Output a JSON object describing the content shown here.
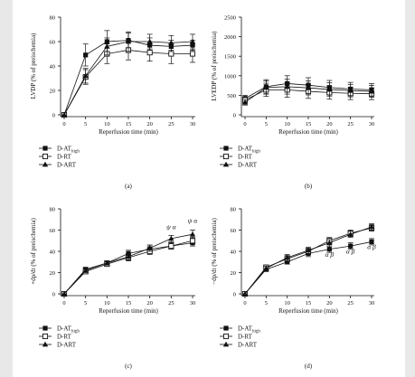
{
  "chart_data": [
    {
      "panel": "(a)",
      "type": "line",
      "x": [
        0,
        5,
        10,
        15,
        20,
        25,
        30
      ],
      "xlabel": "Reperfusion time (min)",
      "ylabel": "LVDP (% of preischemia)",
      "xticks": [
        "0",
        "5",
        "10",
        "15",
        "20",
        "25",
        "30"
      ],
      "yticks": [
        "0",
        "20",
        "40",
        "60",
        "80"
      ],
      "ylim": [
        0,
        80
      ],
      "series": [
        {
          "name": "D-AT",
          "name_sub": "high",
          "marker": "square-filled",
          "values": [
            0,
            49,
            60,
            61,
            57,
            56,
            57
          ],
          "errors": [
            0,
            9,
            9,
            6,
            6,
            5,
            4
          ]
        },
        {
          "name": "D-RT",
          "marker": "square-open",
          "values": [
            0,
            31,
            50,
            53,
            51,
            50,
            50
          ],
          "errors": [
            0,
            6,
            8,
            8,
            7,
            8,
            7
          ]
        },
        {
          "name": "D-ART",
          "marker": "triangle-filled",
          "values": [
            0,
            32,
            56,
            60,
            60,
            59,
            60
          ],
          "errors": [
            0,
            6,
            7,
            8,
            6,
            6,
            6
          ]
        }
      ],
      "annotations": []
    },
    {
      "panel": "(b)",
      "type": "line",
      "x": [
        0,
        5,
        10,
        15,
        20,
        25,
        30
      ],
      "xlabel": "Reperfusion time (min)",
      "ylabel": "LVEDP (% of preischemia)",
      "xticks": [
        "0",
        "5",
        "10",
        "15",
        "20",
        "25",
        "30"
      ],
      "yticks": [
        "0",
        "500",
        "1000",
        "1500",
        "2000",
        "2500"
      ],
      "ylim": [
        0,
        2500
      ],
      "series": [
        {
          "name": "D-AT",
          "name_sub": "high",
          "marker": "square-filled",
          "values": [
            420,
            720,
            800,
            760,
            700,
            660,
            640
          ],
          "errors": [
            80,
            180,
            200,
            190,
            180,
            170,
            160
          ]
        },
        {
          "name": "D-RT",
          "marker": "square-open",
          "values": [
            380,
            640,
            640,
            600,
            570,
            550,
            540
          ],
          "errors": [
            80,
            170,
            190,
            180,
            170,
            160,
            150
          ]
        },
        {
          "name": "D-ART",
          "marker": "triangle-filled",
          "values": [
            320,
            700,
            720,
            690,
            650,
            620,
            600
          ],
          "errors": [
            70,
            170,
            190,
            180,
            170,
            160,
            150
          ]
        }
      ],
      "annotations": []
    },
    {
      "panel": "(c)",
      "type": "line",
      "x": [
        0,
        5,
        10,
        15,
        20,
        25,
        30
      ],
      "xlabel": "Reperfusion time (min)",
      "ylabel": "+dp/dt (% of preischemia)",
      "xticks": [
        "0",
        "5",
        "10",
        "15",
        "20",
        "25",
        "30"
      ],
      "yticks": [
        "0",
        "20",
        "40",
        "60",
        "80"
      ],
      "ylim": [
        0,
        80
      ],
      "series": [
        {
          "name": "D-AT",
          "name_sub": "high",
          "marker": "square-filled",
          "values": [
            0,
            23,
            29,
            38,
            42,
            45,
            48
          ],
          "errors": [
            0,
            2,
            2,
            3,
            3,
            3,
            3
          ]
        },
        {
          "name": "D-RT",
          "marker": "square-open",
          "values": [
            0,
            21,
            28,
            34,
            40,
            45,
            50
          ],
          "errors": [
            0,
            2,
            2,
            3,
            3,
            3,
            3
          ]
        },
        {
          "name": "D-ART",
          "marker": "triangle-filled",
          "values": [
            0,
            22,
            29,
            35,
            43,
            52,
            56
          ],
          "errors": [
            0,
            2,
            2,
            3,
            3,
            3,
            4
          ]
        }
      ],
      "annotations": [
        {
          "x": 25,
          "y": 61,
          "text": "ψ α"
        },
        {
          "x": 30,
          "y": 67,
          "text": "ψ α"
        }
      ]
    },
    {
      "panel": "(d)",
      "type": "line",
      "x": [
        0,
        5,
        10,
        15,
        20,
        25,
        30
      ],
      "xlabel": "Reperfusion time (min)",
      "ylabel": "−dp/dt (% of preischemia)",
      "xticks": [
        "0",
        "5",
        "10",
        "15",
        "20",
        "25",
        "30"
      ],
      "yticks": [
        "0",
        "20",
        "40",
        "60",
        "80"
      ],
      "ylim": [
        0,
        80
      ],
      "series": [
        {
          "name": "D-AT",
          "name_sub": "high",
          "marker": "square-filled",
          "values": [
            0,
            23,
            30,
            38,
            42,
            45,
            49
          ],
          "errors": [
            0,
            2,
            2,
            3,
            3,
            3,
            3
          ]
        },
        {
          "name": "D-RT",
          "marker": "square-open",
          "values": [
            0,
            25,
            33,
            40,
            50,
            57,
            62
          ],
          "errors": [
            0,
            2,
            3,
            3,
            3,
            3,
            3
          ]
        },
        {
          "name": "D-ART",
          "marker": "triangle-filled",
          "values": [
            0,
            24,
            34,
            41,
            48,
            56,
            63
          ],
          "errors": [
            0,
            2,
            3,
            3,
            3,
            3,
            3
          ]
        }
      ],
      "annotations": [
        {
          "x": 20,
          "y": 35,
          "text": "α β"
        },
        {
          "x": 25,
          "y": 38,
          "text": "α β"
        },
        {
          "x": 30,
          "y": 42,
          "text": "α β"
        }
      ]
    }
  ]
}
